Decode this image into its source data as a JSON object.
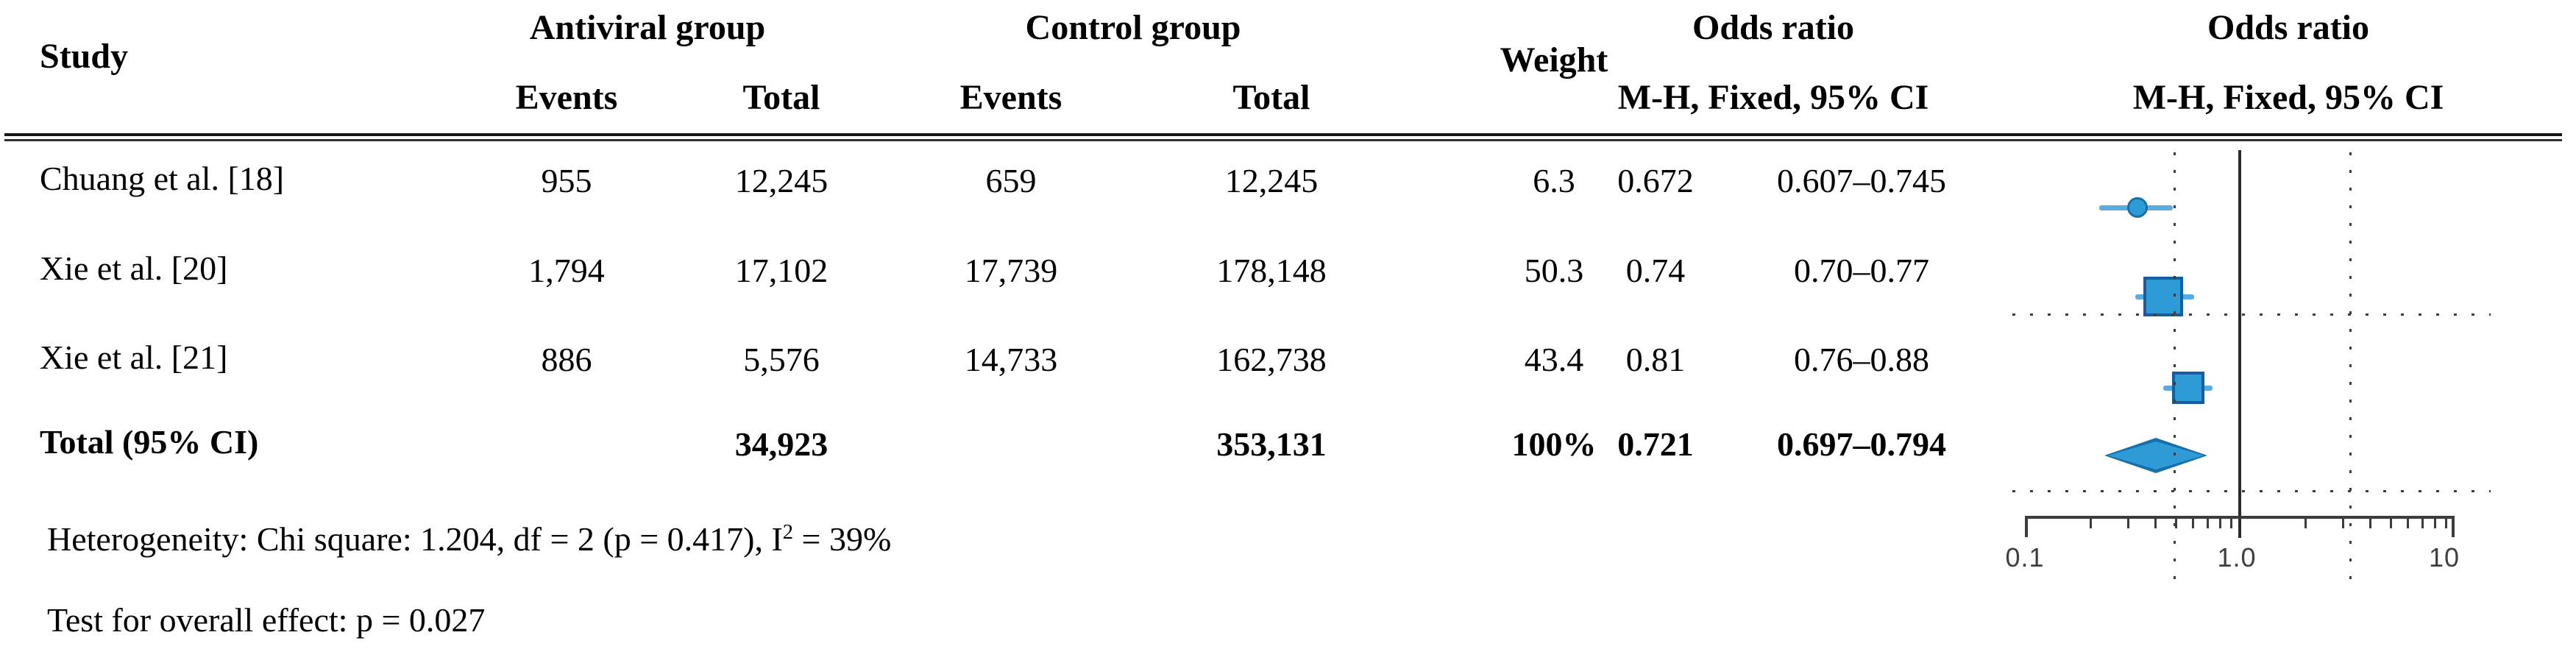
{
  "table": {
    "header": {
      "study": "Study",
      "antiviral_group": "Antiviral group",
      "control_group": "Control group",
      "events": "Events",
      "total": "Total",
      "weight": "Weight",
      "odds_ratio": "Odds ratio",
      "mh_fixed": "M-H, Fixed, 95% CI"
    },
    "rows": [
      {
        "study": "Chuang et al. [18]",
        "av_events": "955",
        "av_total": "12,245",
        "c_events": "659",
        "c_total": "12,245",
        "weight": "6.3",
        "or": "0.672",
        "ci": "0.607–0.745"
      },
      {
        "study": "Xie et al. [20]",
        "av_events": "1,794",
        "av_total": "17,102",
        "c_events": "17,739",
        "c_total": "178,148",
        "weight": "50.3",
        "or": "0.74",
        "ci": "0.70–0.77"
      },
      {
        "study": "Xie et al. [21]",
        "av_events": "886",
        "av_total": "5,576",
        "c_events": "14,733",
        "c_total": "162,738",
        "weight": "43.4",
        "or": "0.81",
        "ci": "0.76–0.88"
      }
    ],
    "total_row": {
      "study": "Total (95% CI)",
      "av_total": "34,923",
      "c_total": "353,131",
      "weight": "100%",
      "or": "0.721",
      "ci": "0.697–0.794"
    }
  },
  "notes": {
    "heterogeneity_prefix": "Heterogeneity: Chi square: 1.204, df = 2 (p = 0.417), I",
    "heterogeneity_sup": "2",
    "heterogeneity_suffix": " = 39%",
    "overall_effect": "Test for overall effect: p = 0.027"
  },
  "axis": {
    "tick_01": "0.1",
    "tick_1": "1.0",
    "tick_10": "10"
  },
  "colors": {
    "marker_fill": "#2e9bd7",
    "marker_border": "#135fa0",
    "whisker": "#57abdf",
    "lines": "#3d3d3d"
  },
  "chart_data": {
    "type": "forest",
    "effect_measure": "Odds ratio, M-H, Fixed, 95% CI",
    "x_scale": "log",
    "x_ticks": [
      0.1,
      1.0,
      10
    ],
    "no_effect_line": 1.0,
    "dotted_reference_lines_x": [
      0.5,
      3.3
    ],
    "legend_position": "none",
    "studies": [
      {
        "label": "Chuang et al. [18]",
        "antiviral_events": 955,
        "antiviral_total": 12245,
        "control_events": 659,
        "control_total": 12245,
        "weight_pct": 6.3,
        "or": 0.672,
        "ci_low": 0.607,
        "ci_high": 0.745,
        "marker": "small-circle"
      },
      {
        "label": "Xie et al. [20]",
        "antiviral_events": 1794,
        "antiviral_total": 17102,
        "control_events": 17739,
        "control_total": 178148,
        "weight_pct": 50.3,
        "or": 0.74,
        "ci_low": 0.7,
        "ci_high": 0.77,
        "marker": "large-square"
      },
      {
        "label": "Xie et al. [21]",
        "antiviral_events": 886,
        "antiviral_total": 5576,
        "control_events": 14733,
        "control_total": 162738,
        "weight_pct": 43.4,
        "or": 0.81,
        "ci_low": 0.76,
        "ci_high": 0.88,
        "marker": "medium-square"
      }
    ],
    "total": {
      "label": "Total (95% CI)",
      "antiviral_total": 34923,
      "control_total": 353131,
      "weight_pct": 100,
      "or": 0.721,
      "ci_low": 0.697,
      "ci_high": 0.794,
      "marker": "diamond"
    },
    "heterogeneity": "Chi square: 1.204, df = 2 (p = 0.417), I2 = 39%",
    "overall_effect_p": 0.027
  }
}
